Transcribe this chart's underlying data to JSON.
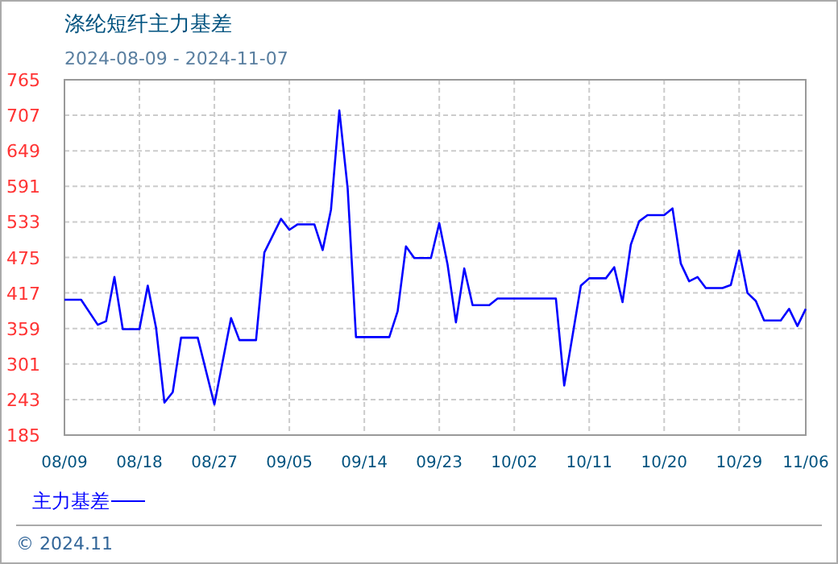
{
  "chart_data": {
    "type": "line",
    "title": "涤纶短纤主力基差",
    "subtitle": "2024-08-09 - 2024-11-07",
    "x": [
      "2024-08-09",
      "2024-08-11",
      "2024-08-13",
      "2024-08-14",
      "2024-08-15",
      "2024-08-16",
      "2024-08-18",
      "2024-08-19",
      "2024-08-20",
      "2024-08-21",
      "2024-08-22",
      "2024-08-23",
      "2024-08-25",
      "2024-08-27",
      "2024-08-29",
      "2024-08-30",
      "2024-09-01",
      "2024-09-02",
      "2024-09-04",
      "2024-09-05",
      "2024-09-06",
      "2024-09-08",
      "2024-09-09",
      "2024-09-10",
      "2024-09-11",
      "2024-09-12",
      "2024-09-13",
      "2024-09-17",
      "2024-09-18",
      "2024-09-19",
      "2024-09-20",
      "2024-09-22",
      "2024-09-23",
      "2024-09-24",
      "2024-09-25",
      "2024-09-26",
      "2024-09-27",
      "2024-09-29",
      "2024-09-30",
      "2024-10-07",
      "2024-10-08",
      "2024-10-10",
      "2024-10-11",
      "2024-10-13",
      "2024-10-14",
      "2024-10-15",
      "2024-10-16",
      "2024-10-17",
      "2024-10-18",
      "2024-10-20",
      "2024-10-21",
      "2024-10-22",
      "2024-10-23",
      "2024-10-24",
      "2024-10-25",
      "2024-10-27",
      "2024-10-28",
      "2024-10-29",
      "2024-10-30",
      "2024-10-31",
      "2024-11-01",
      "2024-11-03",
      "2024-11-04",
      "2024-11-05",
      "2024-11-06"
    ],
    "series": [
      {
        "name": "主力基差",
        "color": "#0000ff",
        "values": [
          406,
          406,
          365,
          371,
          443,
          358,
          358,
          429,
          360,
          238,
          255,
          344,
          344,
          235,
          376,
          340,
          340,
          483,
          538,
          520,
          529,
          529,
          487,
          553,
          715,
          588,
          345,
          345,
          387,
          493,
          474,
          474,
          531,
          463,
          369,
          457,
          397,
          397,
          408,
          408,
          266,
          429,
          441,
          441,
          459,
          402,
          496,
          534,
          544,
          544,
          555,
          465,
          436,
          443,
          425,
          425,
          430,
          486,
          417,
          404,
          372,
          372,
          391,
          363,
          391
        ]
      }
    ],
    "xlim": [
      "2024-08-09",
      "2024-11-06"
    ],
    "xticks": [
      {
        "value": "2024-08-09",
        "label": "08/09"
      },
      {
        "value": "2024-08-18",
        "label": "08/18"
      },
      {
        "value": "2024-08-27",
        "label": "08/27"
      },
      {
        "value": "2024-09-05",
        "label": "09/05"
      },
      {
        "value": "2024-09-14",
        "label": "09/14"
      },
      {
        "value": "2024-09-23",
        "label": "09/23"
      },
      {
        "value": "2024-10-02",
        "label": "10/02"
      },
      {
        "value": "2024-10-11",
        "label": "10/11"
      },
      {
        "value": "2024-10-20",
        "label": "10/20"
      },
      {
        "value": "2024-10-29",
        "label": "10/29"
      },
      {
        "value": "2024-11-06",
        "label": "11/06"
      }
    ],
    "ylim": [
      185,
      765
    ],
    "yticks": [
      185,
      243,
      301,
      359,
      417,
      475,
      533,
      591,
      649,
      707,
      765
    ],
    "grid": true,
    "legend": "bottom left",
    "annotations": [
      "© 2024.11"
    ]
  }
}
